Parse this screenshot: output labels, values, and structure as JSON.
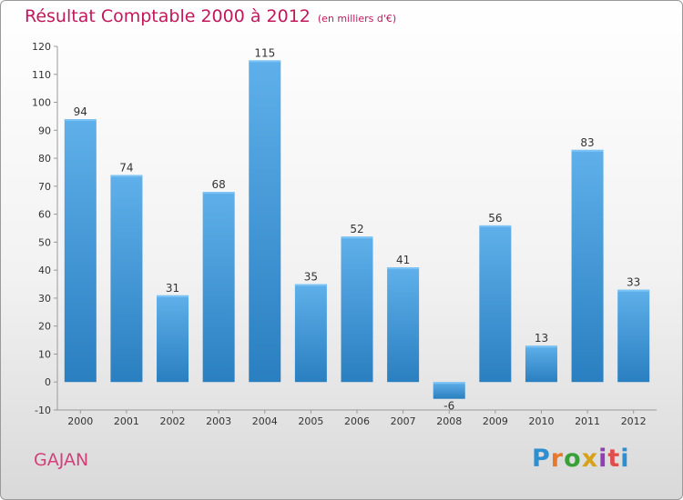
{
  "chart_data": {
    "type": "bar",
    "title": "Résultat Comptable 2000 à 2012",
    "subtitle": "(en milliers d'€)",
    "categories": [
      "2000",
      "2001",
      "2002",
      "2003",
      "2004",
      "2005",
      "2006",
      "2007",
      "2008",
      "2009",
      "2010",
      "2011",
      "2012"
    ],
    "values": [
      94,
      74,
      31,
      68,
      115,
      35,
      52,
      41,
      -6,
      56,
      13,
      83,
      33
    ],
    "ylim": [
      -10,
      120
    ],
    "yticks": [
      -10,
      0,
      10,
      20,
      30,
      40,
      50,
      60,
      70,
      80,
      90,
      100,
      110,
      120
    ],
    "xlabel": "",
    "ylabel": "",
    "grid": false,
    "bar_color": "#3a93d6"
  },
  "footer": {
    "commune": "GAJAN",
    "logo": "Proxiti",
    "logo_colors": [
      "#2e8fd0",
      "#e8792a",
      "#3aa13a",
      "#d6a21c",
      "#8e3fb0",
      "#e04d4d",
      "#2e8fd0"
    ]
  },
  "colors": {
    "title": "#c2185b",
    "commune": "#d2407a"
  }
}
